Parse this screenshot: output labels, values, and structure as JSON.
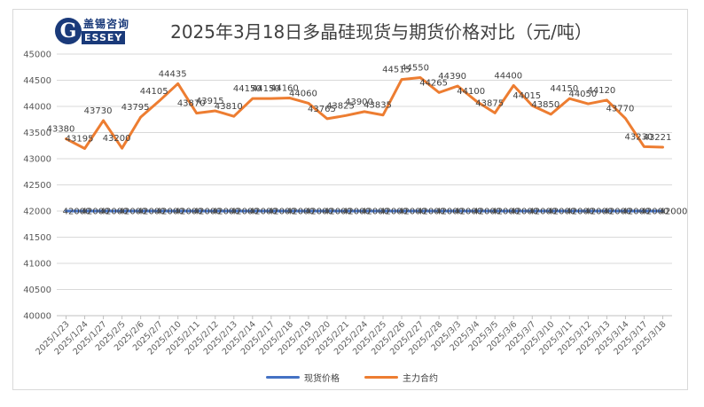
{
  "logo": {
    "letter": "G",
    "cn": "盖锡咨询",
    "en": "ESSEY"
  },
  "colors": {
    "spot": "#4472C4",
    "futures": "#ED7D31",
    "grid": "#d9d9d9",
    "text": "#595959"
  },
  "chart_data": {
    "type": "line",
    "title": "2025年3月18日多晶硅现货与期货价格对比（元/吨）",
    "ylim": [
      40000,
      45000
    ],
    "yticks": [
      40000,
      40500,
      41000,
      41500,
      42000,
      42500,
      43000,
      43500,
      44000,
      44500,
      45000
    ],
    "grid": true,
    "legend_position": "bottom",
    "categories": [
      "2025/1/23",
      "2025/1/24",
      "2025/1/27",
      "2025/2/5",
      "2025/2/6",
      "2025/2/7",
      "2025/2/10",
      "2025/2/11",
      "2025/2/12",
      "2025/2/13",
      "2025/2/14",
      "2025/2/17",
      "2025/2/18",
      "2025/2/19",
      "2025/2/20",
      "2025/2/21",
      "2025/2/24",
      "2025/2/25",
      "2025/2/26",
      "2025/2/27",
      "2025/2/28",
      "2025/3/3",
      "2025/3/4",
      "2025/3/5",
      "2025/3/6",
      "2025/3/7",
      "2025/3/10",
      "2025/3/11",
      "2025/3/12",
      "2025/3/13",
      "2025/3/14",
      "2025/3/17",
      "2025/3/18"
    ],
    "series": [
      {
        "name": "现货价格",
        "values": [
          42000,
          42000,
          42000,
          42000,
          42000,
          42000,
          42000,
          42000,
          42000,
          42000,
          42000,
          42000,
          42000,
          42000,
          42000,
          42000,
          42000,
          42000,
          42000,
          42000,
          42000,
          42000,
          42000,
          42000,
          42000,
          42000,
          42000,
          42000,
          42000,
          42000,
          42000,
          42000,
          42000
        ]
      },
      {
        "name": "主力合约",
        "values": [
          43380,
          43195,
          43730,
          43200,
          43795,
          44105,
          44435,
          43870,
          43915,
          43810,
          44150,
          44150,
          44160,
          44060,
          43765,
          43825,
          43900,
          43835,
          44515,
          44550,
          44265,
          44390,
          44100,
          43875,
          44400,
          44015,
          43850,
          44150,
          44050,
          44120,
          43770,
          43230,
          43221
        ]
      }
    ]
  }
}
